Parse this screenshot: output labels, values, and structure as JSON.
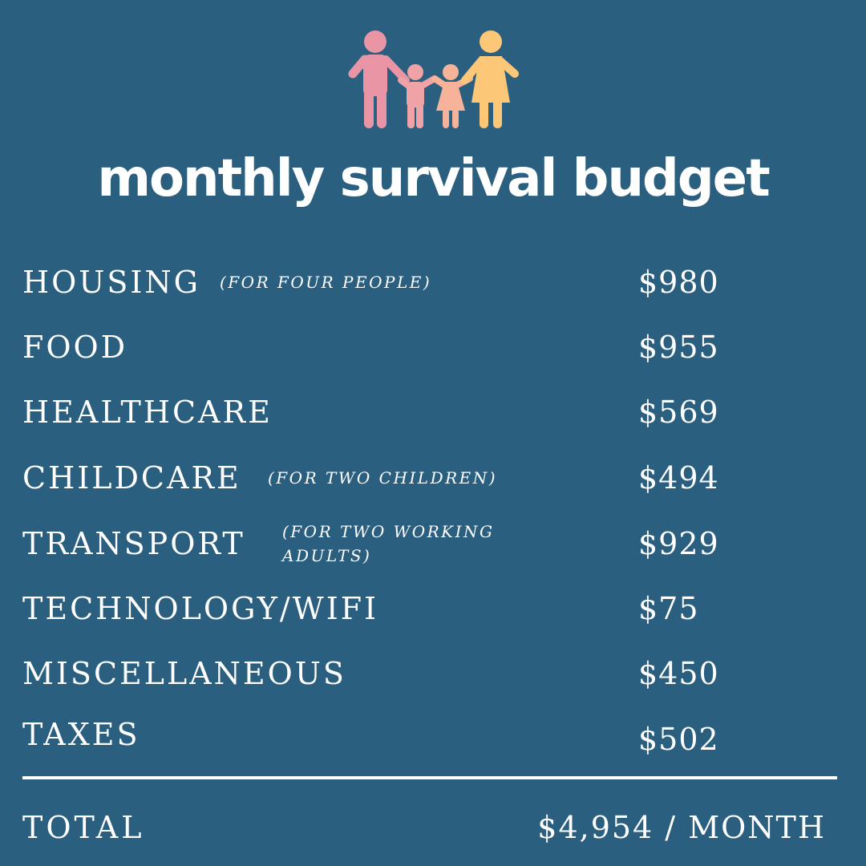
{
  "title": "monthly survival budget",
  "icon": {
    "name": "family-icon",
    "colors": {
      "father": "#e995a6",
      "son": "#f0a3a6",
      "daughter": "#f6b39a",
      "mother": "#fcc777"
    }
  },
  "colors": {
    "background": "#2b5f7f",
    "text": "#ffffff"
  },
  "items": [
    {
      "label": "HOUSING",
      "note": "(FOR FOUR PEOPLE)",
      "amount": "$980"
    },
    {
      "label": "FOOD",
      "note": "",
      "amount": "$955"
    },
    {
      "label": "HEALTHCARE",
      "note": "",
      "amount": "$569"
    },
    {
      "label": "CHILDCARE",
      "note": "(FOR TWO CHILDREN)",
      "amount": "$494"
    },
    {
      "label": "TRANSPORT",
      "note": "(FOR TWO WORKING ADULTS)",
      "amount": "$929"
    },
    {
      "label": "TECHNOLOGY/WIFI",
      "note": "",
      "amount": "$75"
    },
    {
      "label": "MISCELLANEOUS",
      "note": "",
      "amount": "$450"
    },
    {
      "label": "TAXES",
      "note": "",
      "amount": "$502"
    }
  ],
  "total": {
    "label": "TOTAL",
    "amount": "$4,954 / MONTH"
  }
}
